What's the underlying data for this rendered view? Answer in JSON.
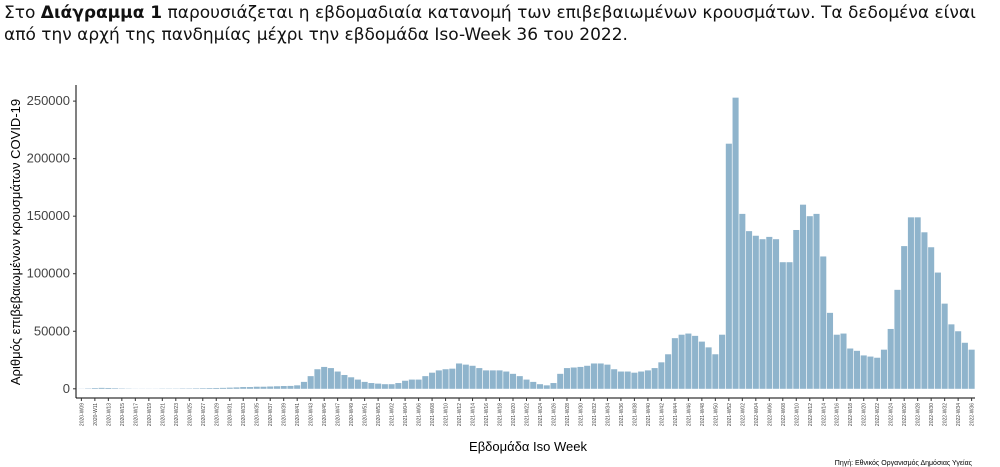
{
  "intro": {
    "before": "Στο ",
    "bold": "Διάγραμμα 1",
    "after": " παρουσιάζεται η εβδομαδιαία κατανομή των επιβεβαιωμένων κρουσμάτων. Τα δεδομένα είναι από την αρχή της πανδημίας μέχρι την εβδομάδα Iso-Week 36 του 2022."
  },
  "chart_data": {
    "type": "bar",
    "x_label": "Εβδομάδα Iso Week",
    "y_label": "Αριθμός επιβεβαιωμένων κρουσμάτων COVID-19",
    "source": "Πηγή: Εθνικός Οργανισμός Δημόσιας Υγείας",
    "color": "#8fb4cc",
    "ylim": [
      -8000,
      264000
    ],
    "yticks": [
      0,
      50000,
      100000,
      150000,
      200000,
      250000
    ],
    "grid": false,
    "categories": [
      "2020-W09",
      null,
      "2020-W11",
      null,
      "2020-W13",
      null,
      "2020-W15",
      null,
      "2020-W17",
      null,
      "2020-W19",
      null,
      "2020-W21",
      null,
      "2020-W23",
      null,
      "2020-W25",
      null,
      "2020-W27",
      null,
      "2020-W29",
      null,
      "2020-W31",
      null,
      "2020-W33",
      null,
      "2020-W35",
      null,
      "2020-W37",
      null,
      "2020-W39",
      null,
      "2020-W41",
      null,
      "2020-W43",
      null,
      "2020-W45",
      null,
      "2020-W47",
      null,
      "2020-W49",
      null,
      "2020-W51",
      null,
      "2020-W53",
      null,
      "2021-W02",
      null,
      "2021-W04",
      null,
      "2021-W06",
      null,
      "2021-W08",
      null,
      "2021-W10",
      null,
      "2021-W12",
      null,
      "2021-W14",
      null,
      "2021-W16",
      null,
      "2021-W18",
      null,
      "2021-W20",
      null,
      "2021-W22",
      null,
      "2021-W24",
      null,
      "2021-W26",
      null,
      "2021-W28",
      null,
      "2021-W30",
      null,
      "2021-W32",
      null,
      "2021-W34",
      null,
      "2021-W36",
      null,
      "2021-W38",
      null,
      "2021-W40",
      null,
      "2021-W42",
      null,
      "2021-W44",
      null,
      "2021-W46",
      null,
      "2021-W48",
      null,
      "2021-W50",
      null,
      "2021-W52",
      null,
      "2022-W02",
      null,
      "2022-W04",
      null,
      "2022-W06",
      null,
      "2022-W08",
      null,
      "2022-W10",
      null,
      "2022-W12",
      null,
      "2022-W14",
      null,
      "2022-W16",
      null,
      "2022-W18",
      null,
      "2022-W20",
      null,
      "2022-W22",
      null,
      "2022-W24",
      null,
      "2022-W26",
      null,
      "2022-W28",
      null,
      "2022-W30",
      null,
      "2022-W32",
      null,
      "2022-W34",
      null,
      "2022-W36"
    ],
    "values": [
      100,
      300,
      600,
      800,
      700,
      500,
      300,
      200,
      100,
      100,
      100,
      100,
      200,
      200,
      200,
      300,
      300,
      400,
      500,
      600,
      700,
      800,
      1000,
      1200,
      1500,
      1500,
      1800,
      1800,
      2000,
      2200,
      2400,
      2500,
      3000,
      6000,
      11000,
      17000,
      19000,
      18000,
      15000,
      12000,
      10000,
      8000,
      6000,
      5000,
      4500,
      4000,
      4000,
      5000,
      7000,
      8000,
      8000,
      11000,
      14000,
      16000,
      17000,
      17500,
      22000,
      21000,
      20000,
      18000,
      16000,
      16000,
      16000,
      15000,
      13000,
      11000,
      8000,
      6000,
      4000,
      3000,
      5000,
      13000,
      18000,
      18500,
      19000,
      20000,
      22000,
      22000,
      21000,
      17000,
      15000,
      15000,
      14000,
      15000,
      16000,
      18000,
      23000,
      30000,
      44000,
      47000,
      48000,
      46000,
      41000,
      36000,
      30000,
      47000,
      213000,
      253000,
      152000,
      137000,
      133000,
      130000,
      132000,
      130000,
      110000,
      110000,
      138000,
      160000,
      150000,
      152000,
      115000,
      66000,
      47000,
      48000,
      35000,
      33000,
      29000,
      28000,
      27000,
      34000,
      52000,
      86000,
      124000,
      149000,
      149000,
      136000,
      123000,
      101000,
      74000,
      56000,
      50000,
      40000,
      34000
    ]
  }
}
